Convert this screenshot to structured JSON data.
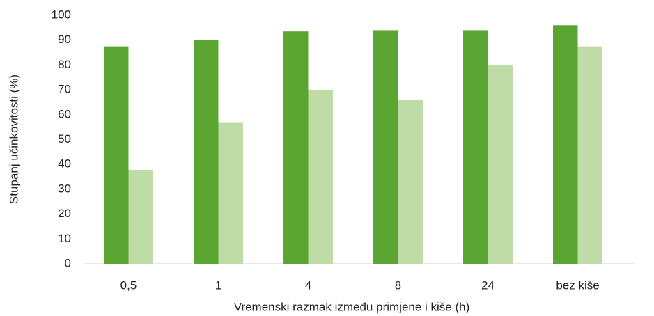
{
  "chart_data": {
    "type": "bar",
    "categories": [
      "0,5",
      "1",
      "4",
      "8",
      "24",
      "bez kiše"
    ],
    "series": [
      {
        "color": "#5aa532",
        "values": [
          87.5,
          90,
          93.5,
          94,
          94,
          96
        ]
      },
      {
        "color": "#bfdba6",
        "values": [
          37.8,
          57,
          70,
          66,
          80,
          87.5
        ]
      }
    ],
    "xlabel": "Vremenski razmak između primjene i kiše (h)",
    "ylabel": "Stupanj učinkovitosti (%)",
    "ylim": [
      0,
      100
    ],
    "yticks": [
      0,
      10,
      20,
      30,
      40,
      50,
      60,
      70,
      80,
      90,
      100
    ],
    "grid": false
  }
}
